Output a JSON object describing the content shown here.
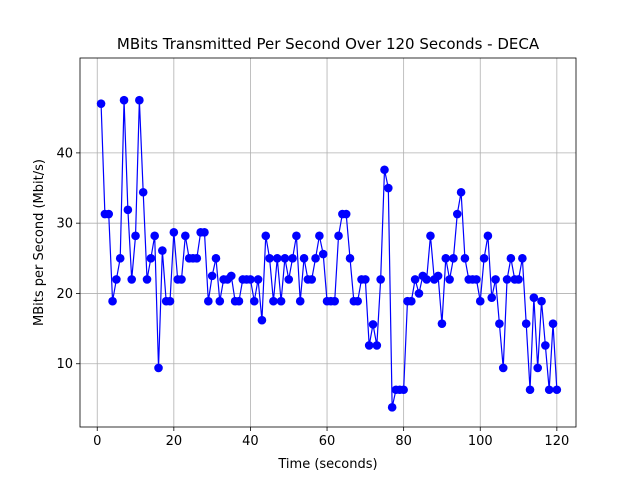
{
  "chart_data": {
    "type": "line",
    "title": "MBits Transmitted Per Second Over 120 Seconds - DECA",
    "xlabel": "Time (seconds)",
    "ylabel": "MBits per Second (Mbit/s)",
    "xlim": [
      -4.5,
      125
    ],
    "ylim": [
      1,
      53.5
    ],
    "xticks": [
      0,
      20,
      40,
      60,
      80,
      100,
      120
    ],
    "yticks": [
      10,
      20,
      30,
      40
    ],
    "grid": true,
    "legend": "none",
    "series": [
      {
        "color": "#0000ff",
        "marker": "circle",
        "x": [
          1,
          2,
          3,
          4,
          5,
          6,
          7,
          8,
          9,
          10,
          11,
          12,
          13,
          14,
          15,
          16,
          17,
          18,
          19,
          20,
          21,
          22,
          23,
          24,
          25,
          26,
          27,
          28,
          29,
          30,
          31,
          32,
          33,
          34,
          35,
          36,
          37,
          38,
          39,
          40,
          41,
          42,
          43,
          44,
          45,
          46,
          47,
          48,
          49,
          50,
          51,
          52,
          53,
          54,
          55,
          56,
          57,
          58,
          59,
          60,
          61,
          62,
          63,
          64,
          65,
          66,
          67,
          68,
          69,
          70,
          71,
          72,
          73,
          74,
          75,
          76,
          77,
          78,
          79,
          80,
          81,
          82,
          83,
          84,
          85,
          86,
          87,
          88,
          89,
          90,
          91,
          92,
          93,
          94,
          95,
          96,
          97,
          98,
          99,
          100,
          101,
          102,
          103,
          104,
          105,
          106,
          107,
          108,
          109,
          110,
          111,
          112,
          113,
          114,
          115,
          116,
          117,
          118,
          119,
          120
        ],
        "y": [
          47.0,
          31.3,
          31.3,
          18.9,
          22.0,
          25.0,
          47.5,
          31.9,
          22.0,
          28.2,
          47.5,
          34.4,
          22.0,
          25.0,
          28.2,
          9.4,
          26.1,
          18.9,
          18.9,
          28.7,
          22.0,
          22.0,
          28.2,
          25.0,
          25.0,
          25.0,
          28.7,
          28.7,
          18.9,
          22.5,
          25.0,
          18.9,
          22.0,
          22.0,
          22.5,
          18.9,
          18.9,
          22.0,
          22.0,
          22.0,
          18.9,
          22.0,
          16.2,
          28.2,
          25.0,
          18.9,
          25.0,
          18.9,
          25.0,
          22.0,
          25.0,
          28.2,
          18.9,
          25.0,
          22.0,
          22.0,
          25.0,
          28.2,
          25.6,
          18.9,
          18.9,
          18.9,
          28.2,
          31.3,
          31.3,
          25.0,
          18.9,
          18.9,
          22.0,
          22.0,
          12.6,
          15.6,
          12.6,
          22.0,
          37.6,
          35.0,
          3.8,
          6.3,
          6.3,
          6.3,
          18.9,
          18.9,
          22.0,
          20.0,
          22.5,
          22.0,
          28.2,
          22.0,
          22.5,
          15.7,
          25.0,
          22.0,
          25.0,
          31.3,
          34.4,
          25.0,
          22.0,
          22.0,
          22.0,
          18.9,
          25.0,
          28.2,
          19.4,
          22.0,
          15.7,
          9.4,
          22.0,
          25.0,
          22.0,
          22.0,
          25.0,
          15.7,
          6.3,
          19.4,
          9.4,
          18.9,
          12.6,
          6.3,
          15.7,
          6.3
        ]
      }
    ]
  }
}
